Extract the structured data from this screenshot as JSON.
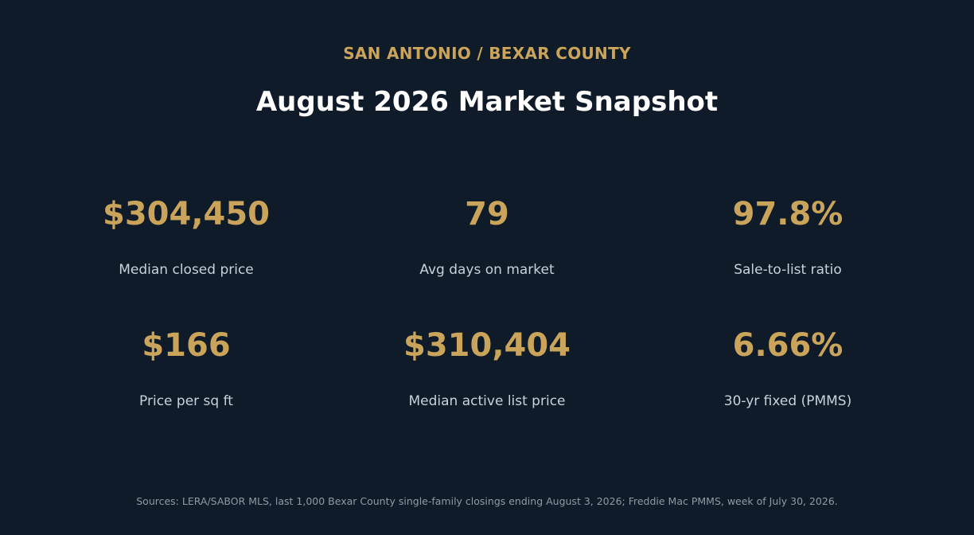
{
  "header": {
    "kicker": "SAN ANTONIO / BEXAR COUNTY",
    "title": "August 2026 Market Snapshot"
  },
  "metrics": [
    {
      "value": "$304,450",
      "label": "Median closed price"
    },
    {
      "value": "79",
      "label": "Avg days on market"
    },
    {
      "value": "97.8%",
      "label": "Sale-to-list ratio"
    },
    {
      "value": "$166",
      "label": "Price per sq ft"
    },
    {
      "value": "$310,404",
      "label": "Median active list price"
    },
    {
      "value": "6.66%",
      "label": "30-yr fixed (PMMS)"
    }
  ],
  "footer": {
    "sources": "Sources: LERA/SABOR MLS, last 1,000 Bexar County single-family closings ending August 3, 2026; Freddie Mac PMMS, week of July 30, 2026."
  },
  "colors": {
    "background": "#0f1b29",
    "accent": "#c9a45a",
    "title": "#ffffff",
    "label": "#c7d2dd",
    "muted": "#8f9aa6"
  }
}
